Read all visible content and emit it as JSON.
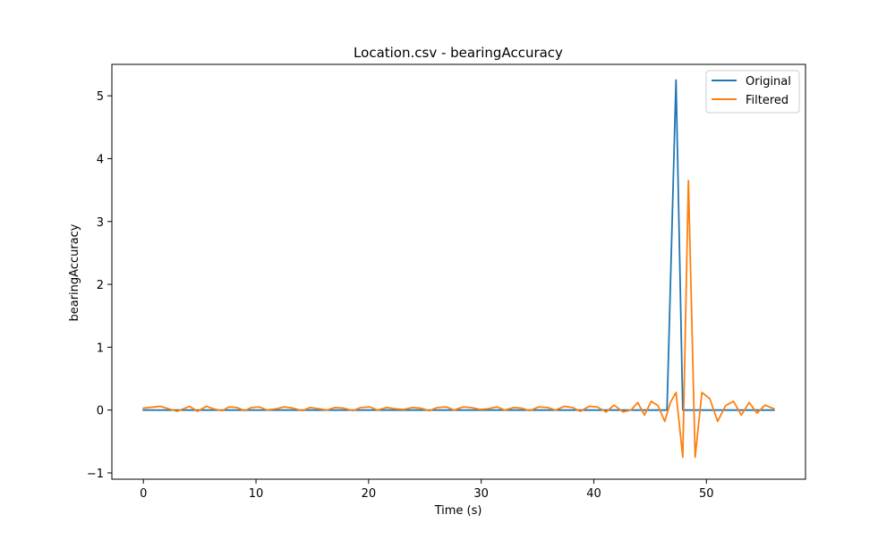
{
  "chart_data": {
    "type": "line",
    "title": "Location.csv - bearingAccuracy",
    "xlabel": "Time (s)",
    "ylabel": "bearingAccuracy",
    "xlim": [
      -2.8,
      58.8
    ],
    "ylim": [
      -1.1,
      5.5
    ],
    "xticks": [
      0,
      10,
      20,
      30,
      40,
      50
    ],
    "yticks": [
      -1,
      0,
      1,
      2,
      3,
      4,
      5
    ],
    "grid": false,
    "legend_placement": "top-right",
    "series": [
      {
        "name": "Original",
        "color": "#1f77b4",
        "x": [
          0,
          46.5,
          47.3,
          47.9,
          56
        ],
        "y": [
          0,
          0,
          5.25,
          0,
          0
        ]
      },
      {
        "name": "Filtered",
        "color": "#ff7f0e",
        "x": [
          0,
          1.5,
          3.0,
          4.1,
          4.8,
          5.6,
          6.2,
          7.0,
          7.6,
          8.3,
          9.0,
          9.6,
          10.3,
          11.0,
          11.8,
          12.5,
          13.3,
          14.1,
          14.8,
          15.6,
          16.3,
          17.0,
          17.8,
          18.6,
          19.3,
          20.1,
          20.8,
          21.6,
          22.4,
          23.1,
          23.9,
          24.6,
          25.4,
          26.1,
          26.9,
          27.6,
          28.4,
          29.1,
          29.9,
          30.6,
          31.4,
          32.1,
          32.9,
          33.6,
          34.3,
          35.1,
          35.9,
          36.6,
          37.4,
          38.1,
          38.8,
          39.6,
          40.3,
          41.1,
          41.8,
          42.6,
          43.3,
          43.9,
          44.5,
          45.1,
          45.7,
          46.3,
          46.8,
          47.3,
          47.9,
          48.4,
          49.0,
          49.6,
          50.3,
          51.0,
          51.7,
          52.4,
          53.1,
          53.8,
          54.5,
          55.2,
          56.0
        ],
        "y": [
          0.03,
          0.06,
          -0.02,
          0.06,
          -0.02,
          0.06,
          0.02,
          -0.01,
          0.05,
          0.04,
          -0.01,
          0.04,
          0.05,
          0.0,
          0.02,
          0.05,
          0.03,
          -0.01,
          0.04,
          0.02,
          0.0,
          0.04,
          0.03,
          -0.01,
          0.04,
          0.05,
          0.0,
          0.04,
          0.02,
          0.01,
          0.04,
          0.03,
          -0.01,
          0.04,
          0.05,
          0.0,
          0.05,
          0.04,
          0.01,
          0.02,
          0.05,
          0.0,
          0.04,
          0.03,
          -0.01,
          0.05,
          0.04,
          0.0,
          0.06,
          0.04,
          -0.02,
          0.06,
          0.05,
          -0.03,
          0.08,
          -0.03,
          0.0,
          0.12,
          -0.08,
          0.14,
          0.07,
          -0.18,
          0.12,
          0.28,
          -0.75,
          3.65,
          -0.75,
          0.28,
          0.18,
          -0.18,
          0.07,
          0.14,
          -0.08,
          0.12,
          -0.05,
          0.08,
          0.02
        ]
      }
    ]
  }
}
